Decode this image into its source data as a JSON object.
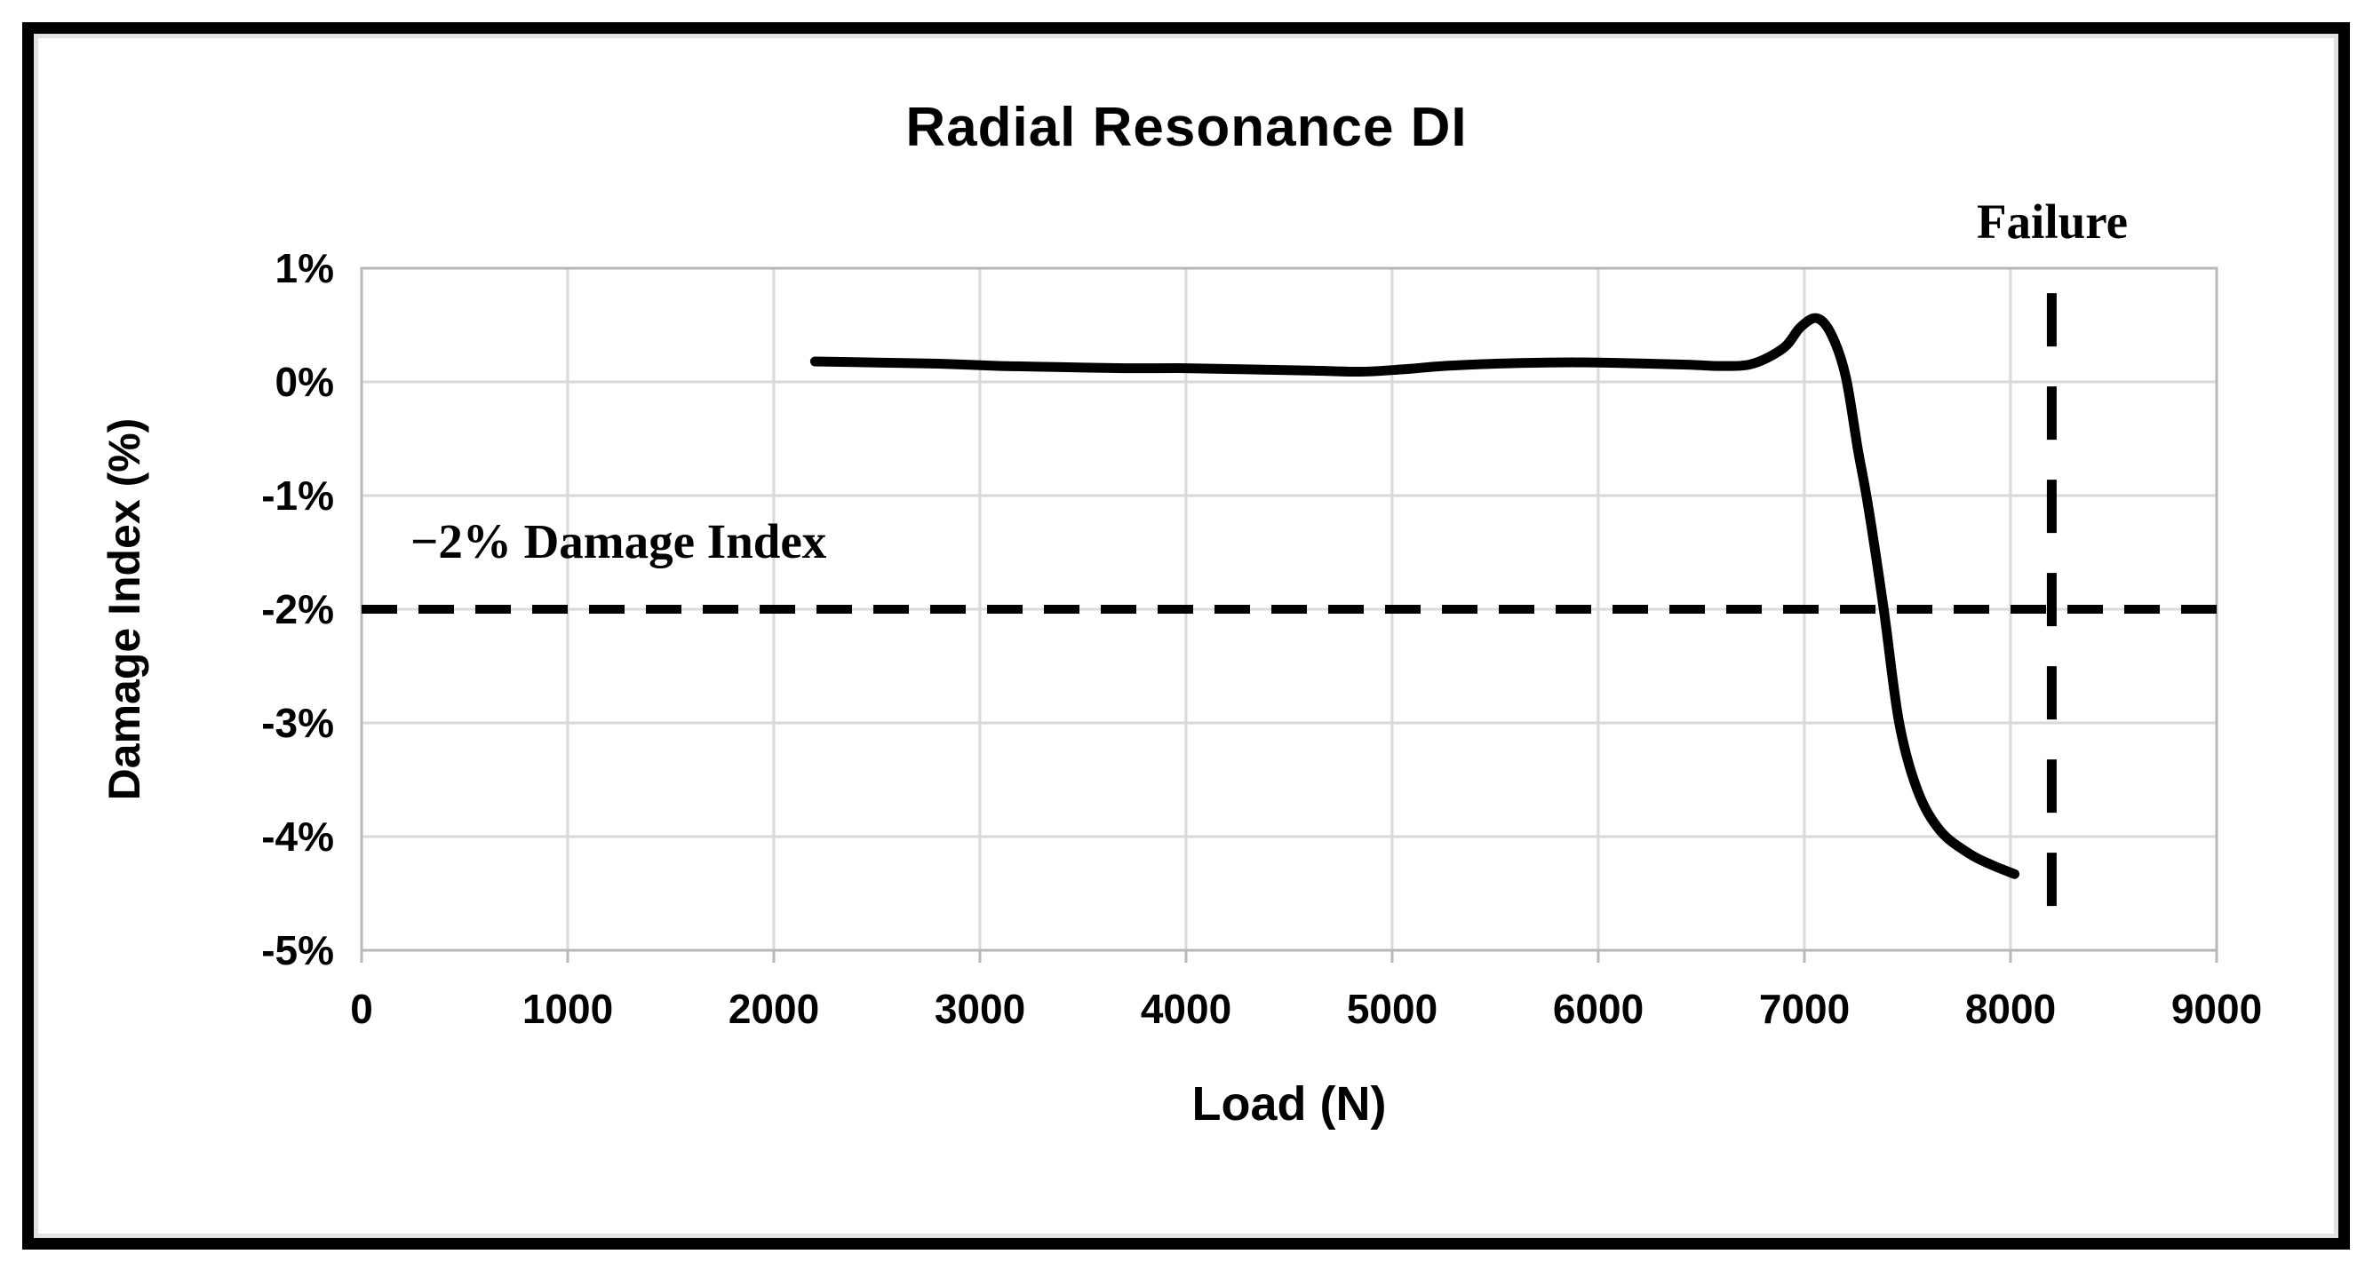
{
  "chart": {
    "title": "Radial Resonance DI",
    "x_axis_title": "Load (N)",
    "y_axis_title": "Damage Index (%)",
    "annotations": {
      "failure_label": "Failure",
      "threshold_label": "−2% Damage Index"
    }
  },
  "chart_data": {
    "type": "line",
    "title": "Radial Resonance DI",
    "xlabel": "Load (N)",
    "ylabel": "Damage Index (%)",
    "xlim": [
      0,
      9000
    ],
    "ylim": [
      -5,
      1
    ],
    "grid": true,
    "x_ticks": [
      {
        "v": 0,
        "label": "0"
      },
      {
        "v": 1000,
        "label": "1000"
      },
      {
        "v": 2000,
        "label": "2000"
      },
      {
        "v": 3000,
        "label": "3000"
      },
      {
        "v": 4000,
        "label": "4000"
      },
      {
        "v": 5000,
        "label": "5000"
      },
      {
        "v": 6000,
        "label": "6000"
      },
      {
        "v": 7000,
        "label": "7000"
      },
      {
        "v": 8000,
        "label": "8000"
      },
      {
        "v": 9000,
        "label": "9000"
      }
    ],
    "y_ticks": [
      {
        "v": 1,
        "label": "1%"
      },
      {
        "v": 0,
        "label": "0%"
      },
      {
        "v": -1,
        "label": "-1%"
      },
      {
        "v": -2,
        "label": "-2%"
      },
      {
        "v": -3,
        "label": "-3%"
      },
      {
        "v": -4,
        "label": "-4%"
      },
      {
        "v": -5,
        "label": "-5%"
      }
    ],
    "series": [
      {
        "name": "Radial Resonance DI",
        "color": "#000000",
        "points": [
          [
            2200,
            0.18
          ],
          [
            2500,
            0.17
          ],
          [
            2800,
            0.16
          ],
          [
            3100,
            0.14
          ],
          [
            3400,
            0.13
          ],
          [
            3700,
            0.12
          ],
          [
            4000,
            0.12
          ],
          [
            4300,
            0.11
          ],
          [
            4600,
            0.1
          ],
          [
            4850,
            0.09
          ],
          [
            5050,
            0.11
          ],
          [
            5250,
            0.14
          ],
          [
            5500,
            0.16
          ],
          [
            5750,
            0.17
          ],
          [
            6000,
            0.17
          ],
          [
            6250,
            0.16
          ],
          [
            6450,
            0.15
          ],
          [
            6600,
            0.14
          ],
          [
            6750,
            0.16
          ],
          [
            6900,
            0.3
          ],
          [
            6980,
            0.48
          ],
          [
            7060,
            0.56
          ],
          [
            7130,
            0.42
          ],
          [
            7200,
            0.05
          ],
          [
            7260,
            -0.6
          ],
          [
            7310,
            -1.1
          ],
          [
            7385,
            -2.0
          ],
          [
            7460,
            -3.0
          ],
          [
            7550,
            -3.6
          ],
          [
            7660,
            -3.95
          ],
          [
            7800,
            -4.15
          ],
          [
            7910,
            -4.25
          ],
          [
            8020,
            -4.33
          ]
        ]
      }
    ],
    "reference_lines": {
      "horizontal_threshold": {
        "y": -2,
        "label": "−2% Damage Index",
        "style": "dashed",
        "color": "#000000"
      },
      "vertical_failure": {
        "x": 8200,
        "label": "Failure",
        "style": "dashed",
        "color": "#000000",
        "y_from": 0.78,
        "y_to": -4.72
      }
    },
    "style": {
      "gridline_color": "#d9d9d9",
      "plot_border_color": "#b7b7b7",
      "curve_color": "#000000",
      "background": "#ffffff"
    }
  }
}
